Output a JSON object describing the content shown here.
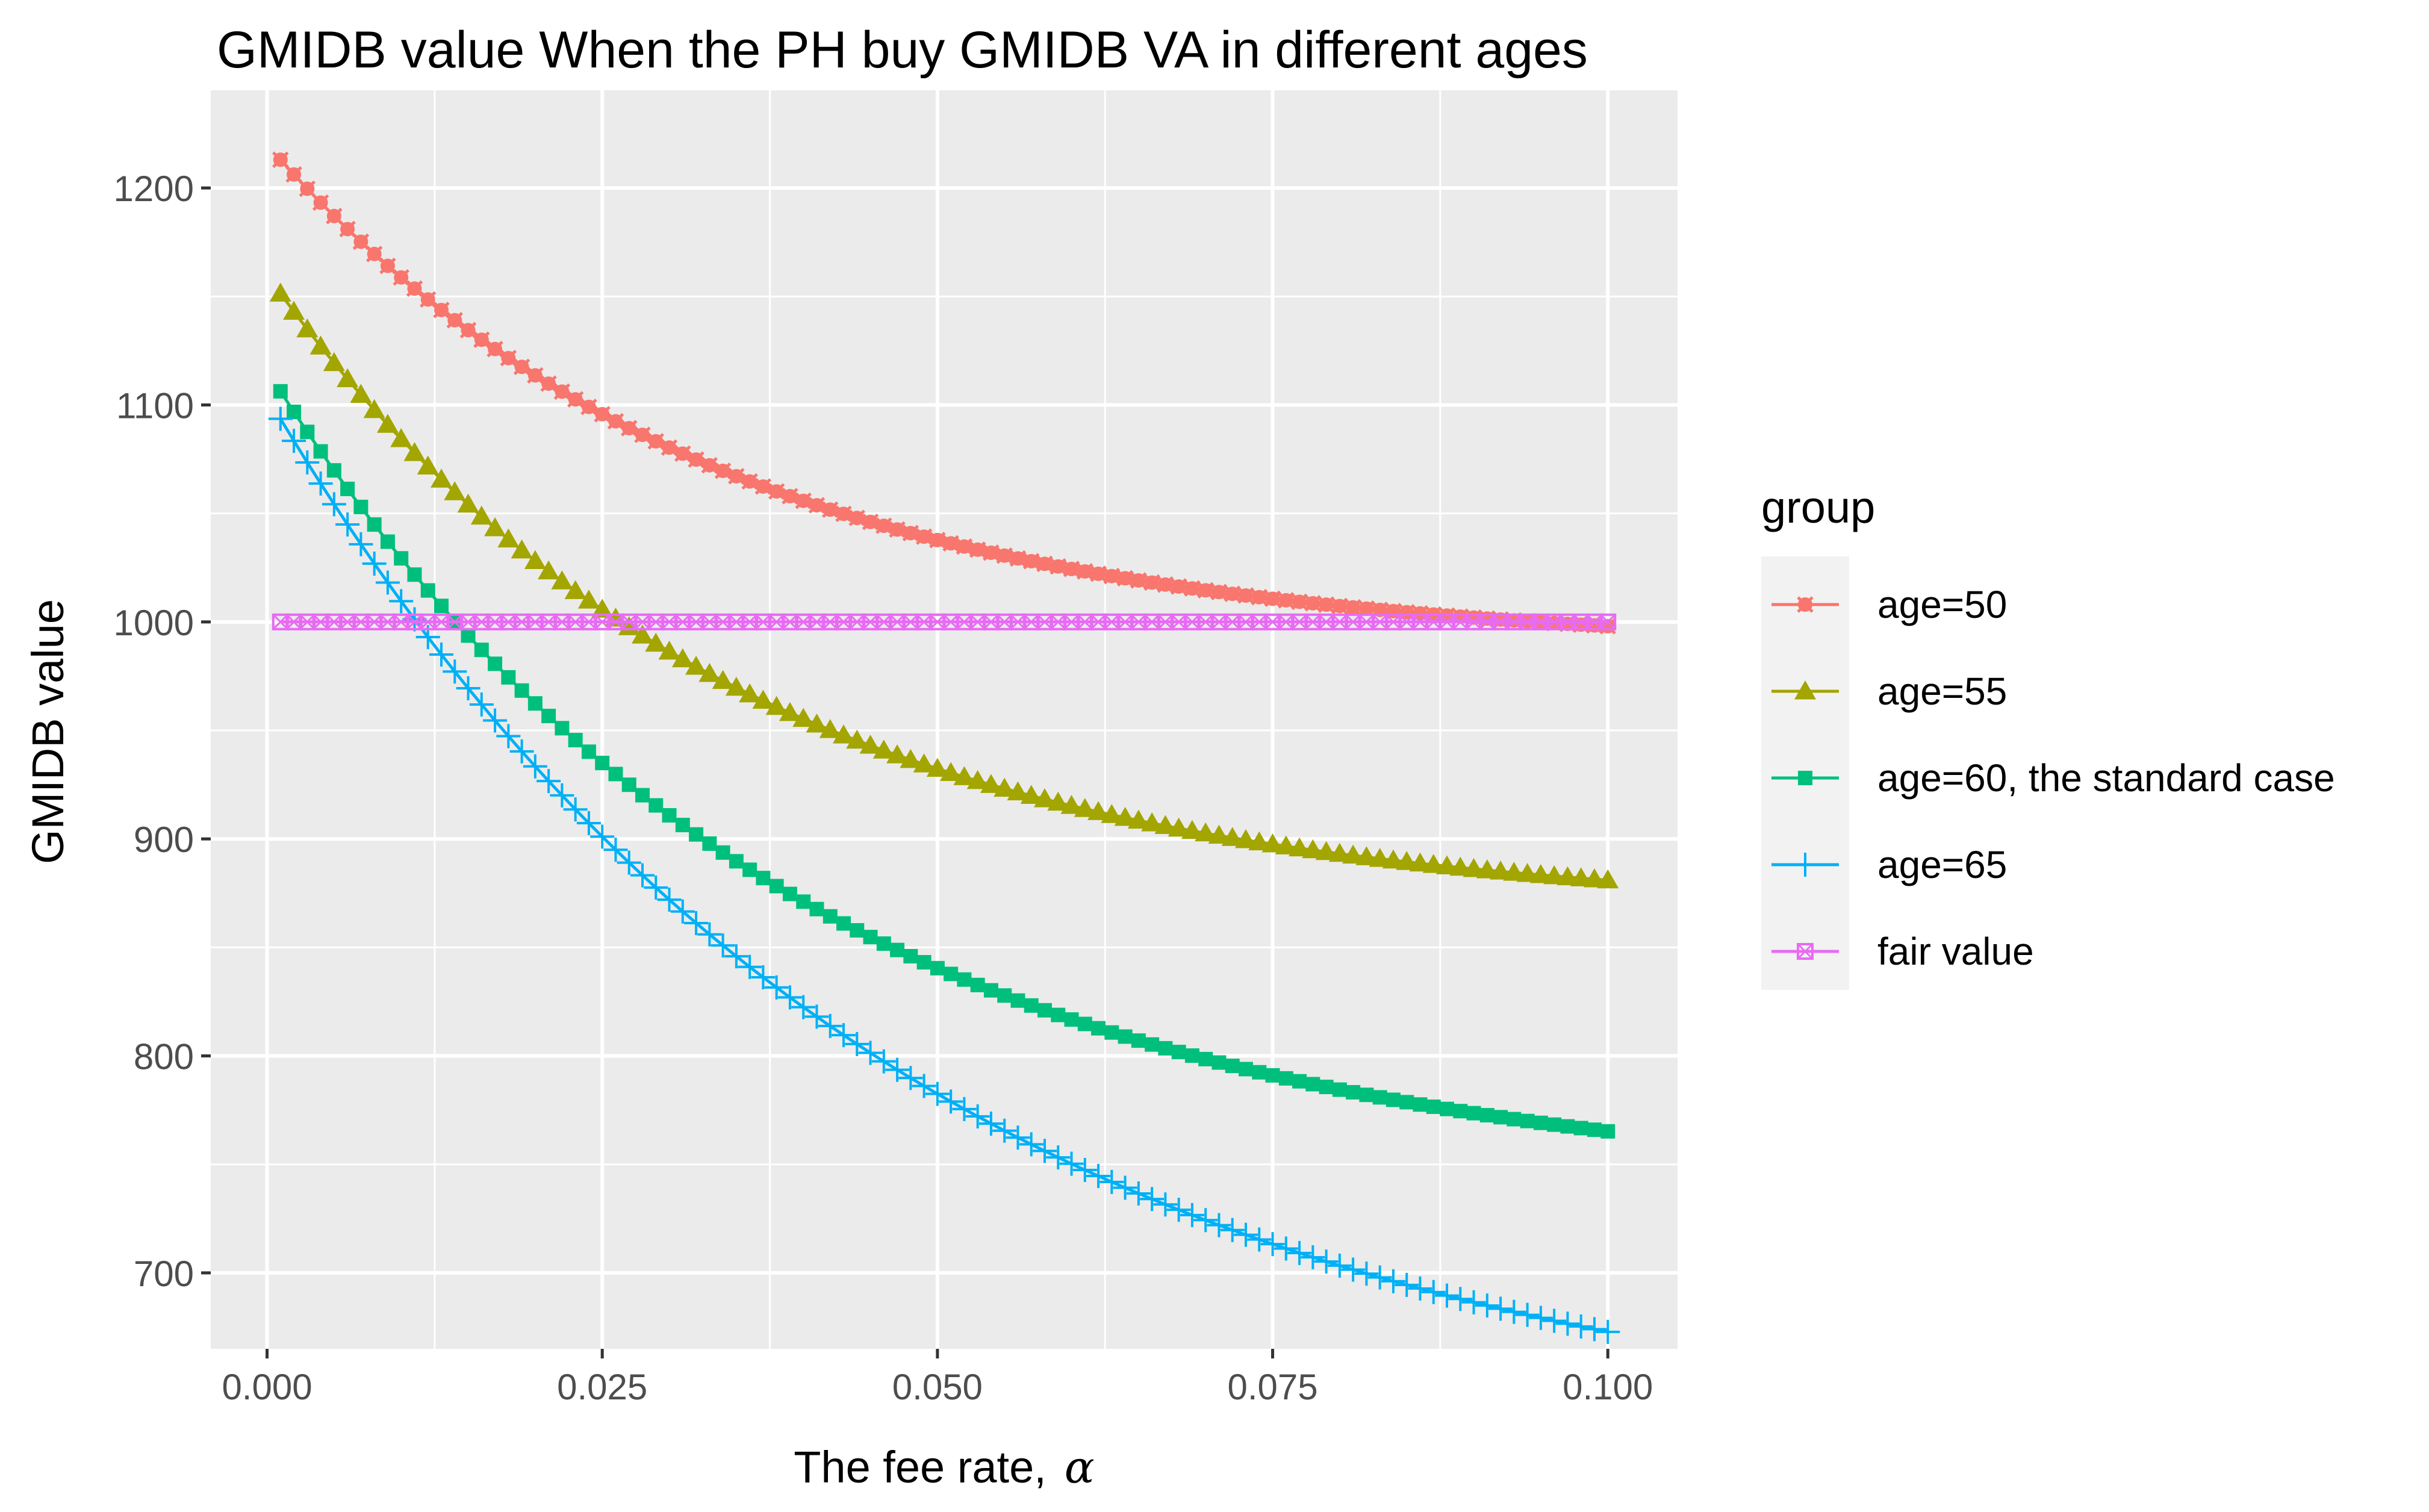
{
  "chart_data": {
    "type": "line",
    "title": "GMIDB value When the PH buy GMIDB VA in different ages",
    "xlabel_prefix": "The fee rate,",
    "xlabel_symbol": "α",
    "ylabel": "GMIDB value",
    "xlim": [
      -0.0042,
      0.1052
    ],
    "ylim": [
      665,
      1245
    ],
    "x_ticks": [
      0.0,
      0.025,
      0.05,
      0.075,
      0.1
    ],
    "x_tick_labels": [
      "0.000",
      "0.025",
      "0.050",
      "0.075",
      "0.100"
    ],
    "y_ticks": [
      700,
      800,
      900,
      1000,
      1100,
      1200
    ],
    "y_tick_labels": [
      "700",
      "800",
      "900",
      "1000",
      "1100",
      "1200"
    ],
    "grid": true,
    "legend_title": "group",
    "legend_position": "right",
    "colors": {
      "panel": "#EBEBEB",
      "grid": "#FFFFFF",
      "text": "#000000",
      "tick_text": "#4D4D4D"
    },
    "x_range": {
      "start": 0.001,
      "end": 0.1,
      "count": 100
    },
    "series": [
      {
        "name": "age=50",
        "color": "#F8766D",
        "marker": "circle-x",
        "model": {
          "c": 987,
          "a": 233,
          "k": 0.0328
        }
      },
      {
        "name": "age=55",
        "color": "#A3A500",
        "marker": "triangle",
        "model": {
          "c": 866,
          "a": 294,
          "k": 0.0336
        }
      },
      {
        "name": "age=60, the standard case",
        "color": "#00BF7D",
        "marker": "square",
        "model": {
          "c": 737,
          "a": 379,
          "k": 0.0385
        }
      },
      {
        "name": "age=65",
        "color": "#00B0F6",
        "marker": "plus",
        "model": {
          "c": 616,
          "a": 488,
          "k": 0.0465
        }
      },
      {
        "name": "fair value",
        "color": "#E76BF3",
        "marker": "square-x",
        "model": {
          "c": 1000,
          "a": 0,
          "k": 1
        }
      }
    ]
  }
}
